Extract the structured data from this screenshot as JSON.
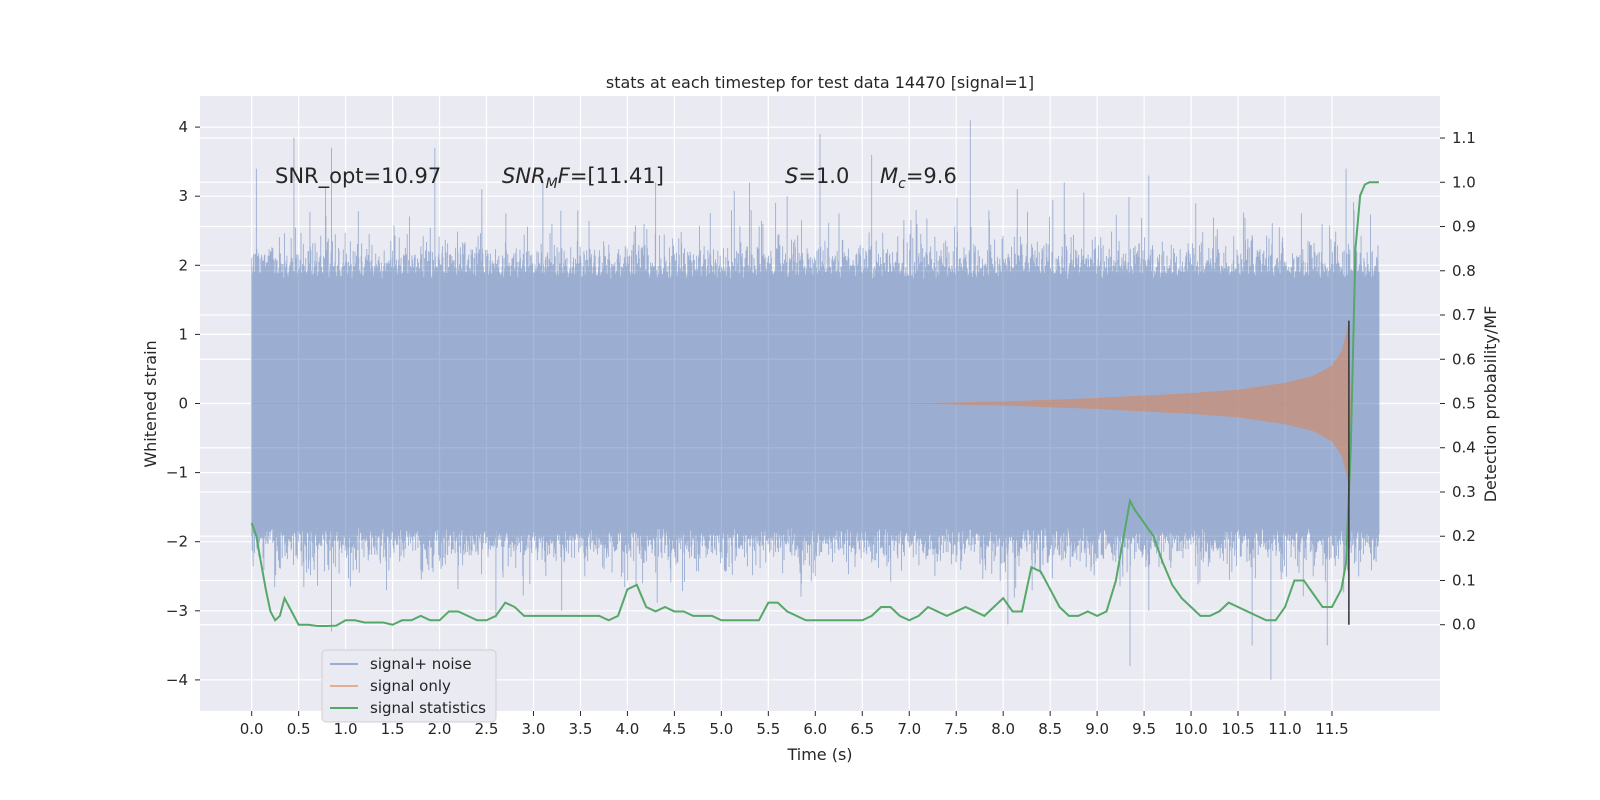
{
  "chart_data": {
    "type": "line",
    "title": "stats at each timestep for test data 14470 [signal=1]",
    "xlabel": "Time (s)",
    "ylabel": "Whitened strain",
    "y2label": "Detection probability/MF",
    "xlim": [
      -0.55,
      12.65
    ],
    "ylim": [
      -4.45,
      4.45
    ],
    "y2lim": [
      -0.195,
      1.195
    ],
    "x_ticks": [
      "0.0",
      "0.5",
      "1.0",
      "1.5",
      "2.0",
      "2.5",
      "3.0",
      "3.5",
      "4.0",
      "4.5",
      "5.0",
      "5.5",
      "6.0",
      "6.5",
      "7.0",
      "7.5",
      "8.0",
      "8.5",
      "9.0",
      "9.5",
      "10.0",
      "10.5",
      "11.0",
      "11.5"
    ],
    "y_ticks": [
      "4",
      "3",
      "2",
      "1",
      "0",
      "−1",
      "−2",
      "−3",
      "−4"
    ],
    "y2_ticks": [
      "1.1",
      "1.0",
      "0.9",
      "0.8",
      "0.7",
      "0.6",
      "0.5",
      "0.4",
      "0.3",
      "0.2",
      "0.1",
      "0.0"
    ],
    "grid": true,
    "legend": "lower-left",
    "annotations": {
      "snr_opt": "SNR_opt=10.97",
      "snr_mf_sym": "SNR",
      "snr_mf_sub": "M",
      "snr_mf_f": "F",
      "snr_mf_val": "=[11.41]",
      "s_sym": "S",
      "s_val": "=1.0",
      "mc_sym": "M",
      "mc_sub": "c",
      "mc_val": "=9.6"
    },
    "series": [
      {
        "name": "signal+ noise",
        "color": "#4c72b0",
        "x_range": [
          0.0,
          12.0
        ],
        "envelope_upper": 1.8,
        "envelope_lower": -1.8,
        "peaks": [
          [
            0.05,
            3.4
          ],
          [
            0.2,
            2.2
          ],
          [
            0.45,
            3.85
          ],
          [
            0.85,
            3.7
          ],
          [
            1.95,
            3.7
          ],
          [
            2.45,
            3.1
          ],
          [
            3.1,
            3.2
          ],
          [
            4.3,
            3.2
          ],
          [
            5.3,
            3.2
          ],
          [
            5.7,
            3.0
          ],
          [
            6.05,
            3.9
          ],
          [
            6.6,
            3.6
          ],
          [
            7.65,
            4.1
          ],
          [
            8.15,
            3.1
          ],
          [
            8.65,
            3.2
          ],
          [
            9.55,
            3.3
          ],
          [
            10.05,
            2.9
          ],
          [
            11.65,
            3.4
          ]
        ],
        "troughs": [
          [
            0.55,
            -2.3
          ],
          [
            0.85,
            -3.3
          ],
          [
            1.1,
            -2.0
          ],
          [
            2.3,
            -2.0
          ],
          [
            2.6,
            -3.1
          ],
          [
            3.3,
            -3.0
          ],
          [
            3.95,
            -2.0
          ],
          [
            5.05,
            -2.4
          ],
          [
            5.75,
            -2.2
          ],
          [
            6.0,
            -2.5
          ],
          [
            6.6,
            -2.3
          ],
          [
            7.5,
            -2.3
          ],
          [
            8.05,
            -3.2
          ],
          [
            8.6,
            -2.2
          ],
          [
            9.35,
            -3.8
          ],
          [
            9.55,
            -3.0
          ],
          [
            10.2,
            -2.3
          ],
          [
            10.65,
            -3.5
          ],
          [
            10.85,
            -4.0
          ],
          [
            11.3,
            -2.5
          ],
          [
            11.45,
            -3.5
          ]
        ]
      },
      {
        "name": "signal only",
        "color": "#dd8452",
        "x": [
          7.0,
          8.0,
          9.0,
          10.0,
          10.5,
          11.0,
          11.3,
          11.5,
          11.6,
          11.65,
          11.68,
          11.7
        ],
        "amplitude": [
          0.0,
          0.03,
          0.08,
          0.15,
          0.2,
          0.3,
          0.4,
          0.55,
          0.75,
          1.0,
          1.2,
          0.0
        ]
      },
      {
        "name": "signal statistics",
        "color": "#55a868",
        "x": [
          0.0,
          0.05,
          0.1,
          0.15,
          0.2,
          0.25,
          0.3,
          0.35,
          0.4,
          0.5,
          0.6,
          0.7,
          0.8,
          0.9,
          1.0,
          1.1,
          1.2,
          1.3,
          1.4,
          1.5,
          1.6,
          1.7,
          1.8,
          1.9,
          2.0,
          2.1,
          2.2,
          2.3,
          2.4,
          2.5,
          2.6,
          2.7,
          2.8,
          2.9,
          3.0,
          3.1,
          3.2,
          3.3,
          3.4,
          3.5,
          3.6,
          3.7,
          3.8,
          3.9,
          4.0,
          4.1,
          4.2,
          4.3,
          4.4,
          4.5,
          4.6,
          4.7,
          4.8,
          4.9,
          5.0,
          5.1,
          5.2,
          5.3,
          5.4,
          5.5,
          5.6,
          5.7,
          5.8,
          5.9,
          6.0,
          6.1,
          6.2,
          6.3,
          6.4,
          6.5,
          6.6,
          6.7,
          6.8,
          6.9,
          7.0,
          7.1,
          7.2,
          7.3,
          7.4,
          7.5,
          7.6,
          7.7,
          7.8,
          7.9,
          8.0,
          8.1,
          8.2,
          8.3,
          8.4,
          8.5,
          8.6,
          8.7,
          8.8,
          8.9,
          9.0,
          9.1,
          9.2,
          9.3,
          9.35,
          9.4,
          9.5,
          9.6,
          9.7,
          9.8,
          9.9,
          10.0,
          10.1,
          10.2,
          10.3,
          10.4,
          10.5,
          10.6,
          10.7,
          10.8,
          10.9,
          11.0,
          11.1,
          11.2,
          11.3,
          11.4,
          11.5,
          11.6,
          11.65,
          11.7,
          11.75,
          11.8,
          11.85,
          11.9,
          12.0
        ],
        "values": [
          0.23,
          0.2,
          0.14,
          0.08,
          0.03,
          0.01,
          0.02,
          0.06,
          0.04,
          0.0,
          0.0,
          -0.003,
          -0.003,
          -0.002,
          0.01,
          0.01,
          0.005,
          0.005,
          0.005,
          0.0,
          0.01,
          0.01,
          0.02,
          0.01,
          0.01,
          0.03,
          0.03,
          0.02,
          0.01,
          0.01,
          0.02,
          0.05,
          0.04,
          0.02,
          0.02,
          0.02,
          0.02,
          0.02,
          0.02,
          0.02,
          0.02,
          0.02,
          0.01,
          0.02,
          0.08,
          0.09,
          0.04,
          0.03,
          0.04,
          0.03,
          0.03,
          0.02,
          0.02,
          0.02,
          0.01,
          0.01,
          0.01,
          0.01,
          0.01,
          0.05,
          0.05,
          0.03,
          0.02,
          0.01,
          0.01,
          0.01,
          0.01,
          0.01,
          0.01,
          0.01,
          0.02,
          0.04,
          0.04,
          0.02,
          0.01,
          0.02,
          0.04,
          0.03,
          0.02,
          0.03,
          0.04,
          0.03,
          0.02,
          0.04,
          0.06,
          0.03,
          0.03,
          0.13,
          0.12,
          0.08,
          0.04,
          0.02,
          0.02,
          0.03,
          0.02,
          0.03,
          0.1,
          0.22,
          0.28,
          0.26,
          0.23,
          0.2,
          0.14,
          0.09,
          0.06,
          0.04,
          0.02,
          0.02,
          0.03,
          0.05,
          0.04,
          0.03,
          0.02,
          0.01,
          0.01,
          0.04,
          0.1,
          0.1,
          0.07,
          0.04,
          0.04,
          0.08,
          0.14,
          0.4,
          0.85,
          0.97,
          0.995,
          1.0,
          1.0
        ]
      }
    ],
    "marker_line_x": 11.68
  }
}
